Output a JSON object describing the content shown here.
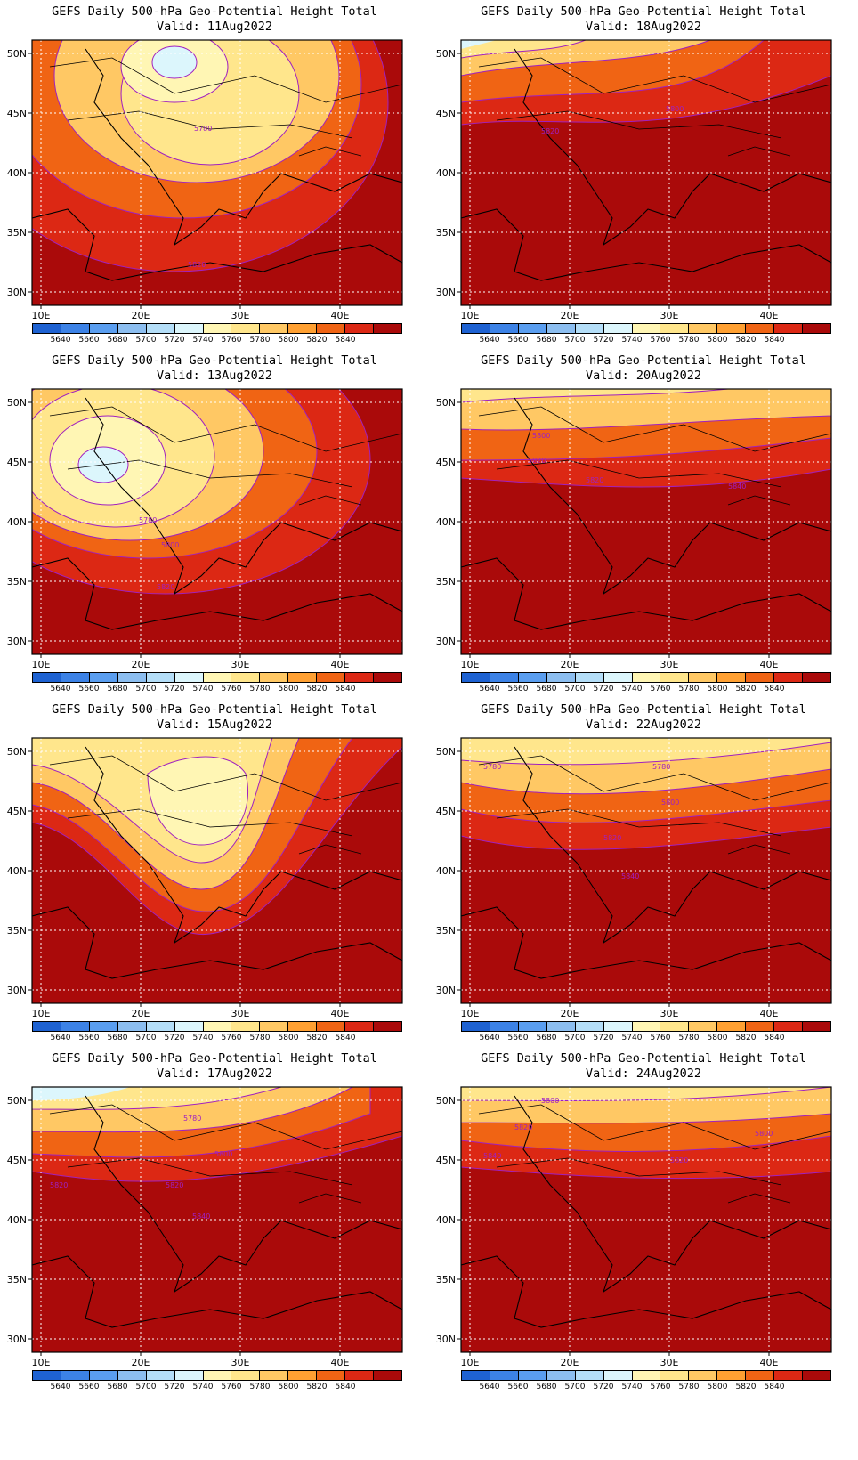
{
  "title_line": "GEFS Daily 500-hPa Geo-Potential Height Total",
  "valid_prefix": "Valid:",
  "panels": [
    {
      "date": "11Aug2022",
      "labels": [
        "5780",
        "5820"
      ]
    },
    {
      "date": "18Aug2022",
      "labels": [
        "5800",
        "5820"
      ]
    },
    {
      "date": "13Aug2022",
      "labels": [
        "5780",
        "5800",
        "5820"
      ]
    },
    {
      "date": "20Aug2022",
      "labels": [
        "5800",
        "5820",
        "5820",
        "5840"
      ]
    },
    {
      "date": "15Aug2022",
      "labels": []
    },
    {
      "date": "22Aug2022",
      "labels": [
        "5780",
        "5780",
        "5800",
        "5820",
        "5840"
      ]
    },
    {
      "date": "17Aug2022",
      "labels": [
        "5780",
        "5800",
        "5820",
        "5820",
        "5840"
      ]
    },
    {
      "date": "24Aug2022",
      "labels": [
        "5800",
        "5820",
        "5800",
        "5840",
        "5820"
      ]
    }
  ],
  "lat_ticks": [
    "50N",
    "45N",
    "40N",
    "35N",
    "30N"
  ],
  "lon_ticks": [
    "10E",
    "20E",
    "30E",
    "40E"
  ],
  "colorbar": {
    "labels": [
      "5640",
      "5660",
      "5680",
      "5700",
      "5720",
      "5740",
      "5760",
      "5780",
      "5800",
      "5820",
      "5840"
    ],
    "colors": [
      "#1e62d2",
      "#3c82e6",
      "#5a9ef0",
      "#8cbef0",
      "#b4def8",
      "#dcf6fc",
      "#fff6b4",
      "#ffe68c",
      "#ffc864",
      "#ffa032",
      "#f06414",
      "#dc2814",
      "#aa0a0a"
    ]
  },
  "contour_color": "#a020c0"
}
